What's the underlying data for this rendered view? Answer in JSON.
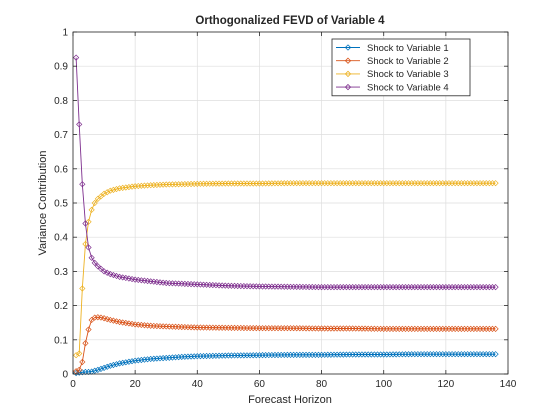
{
  "chart_data": {
    "type": "line",
    "title": "Orthogonalized FEVD of Variable 4",
    "xlabel": "Forecast Horizon",
    "ylabel": "Variance Contribution",
    "xlim": [
      0,
      140
    ],
    "ylim": [
      0,
      1
    ],
    "xticks": [
      0,
      20,
      40,
      60,
      80,
      100,
      120,
      140
    ],
    "yticks": [
      0,
      0.1,
      0.2,
      0.3,
      0.4,
      0.5,
      0.6,
      0.7,
      0.8,
      0.9,
      1
    ],
    "ytick_labels": [
      "0",
      "0.1",
      "0.2",
      "0.3",
      "0.4",
      "0.5",
      "0.6",
      "0.7",
      "0.8",
      "0.9",
      "1"
    ],
    "grid": true,
    "legend_position": "top-right",
    "marker": "diamond",
    "series": [
      {
        "name": "Shock to Variable 1",
        "color": "#0072BD",
        "x": [
          1,
          2,
          3,
          4,
          5,
          6,
          8,
          10,
          12,
          15,
          20,
          25,
          30,
          35,
          40,
          50,
          60,
          70,
          80,
          90,
          100,
          110,
          120,
          130,
          136
        ],
        "y": [
          0.003,
          0.004,
          0.005,
          0.006,
          0.006,
          0.007,
          0.012,
          0.018,
          0.024,
          0.031,
          0.039,
          0.044,
          0.047,
          0.05,
          0.052,
          0.054,
          0.055,
          0.056,
          0.056,
          0.057,
          0.057,
          0.058,
          0.058,
          0.058,
          0.058
        ]
      },
      {
        "name": "Shock to Variable 2",
        "color": "#D95319",
        "x": [
          1,
          2,
          3,
          4,
          5,
          6,
          7,
          8,
          9,
          10,
          12,
          15,
          20,
          25,
          30,
          40,
          50,
          60,
          70,
          80,
          90,
          100,
          110,
          120,
          130,
          136
        ],
        "y": [
          0.008,
          0.012,
          0.035,
          0.09,
          0.13,
          0.158,
          0.165,
          0.166,
          0.165,
          0.163,
          0.158,
          0.152,
          0.145,
          0.141,
          0.139,
          0.136,
          0.135,
          0.134,
          0.134,
          0.133,
          0.133,
          0.132,
          0.132,
          0.132,
          0.132,
          0.132
        ]
      },
      {
        "name": "Shock to Variable 3",
        "color": "#EDB120",
        "x": [
          1,
          2,
          3,
          4,
          5,
          6,
          7,
          8,
          10,
          12,
          15,
          20,
          25,
          30,
          40,
          50,
          60,
          70,
          80,
          90,
          100,
          110,
          120,
          130,
          136
        ],
        "y": [
          0.055,
          0.06,
          0.25,
          0.38,
          0.445,
          0.48,
          0.5,
          0.512,
          0.527,
          0.536,
          0.543,
          0.549,
          0.552,
          0.554,
          0.556,
          0.557,
          0.557,
          0.558,
          0.558,
          0.558,
          0.558,
          0.558,
          0.558,
          0.558,
          0.558
        ]
      },
      {
        "name": "Shock to Variable 4",
        "color": "#7E2F8E",
        "x": [
          1,
          2,
          3,
          4,
          5,
          6,
          7,
          8,
          10,
          12,
          15,
          20,
          25,
          30,
          40,
          50,
          60,
          70,
          80,
          90,
          100,
          110,
          120,
          130,
          136
        ],
        "y": [
          0.925,
          0.73,
          0.555,
          0.44,
          0.37,
          0.34,
          0.325,
          0.315,
          0.3,
          0.292,
          0.284,
          0.276,
          0.271,
          0.266,
          0.262,
          0.258,
          0.256,
          0.255,
          0.254,
          0.254,
          0.254,
          0.254,
          0.254,
          0.254,
          0.254
        ]
      }
    ]
  }
}
